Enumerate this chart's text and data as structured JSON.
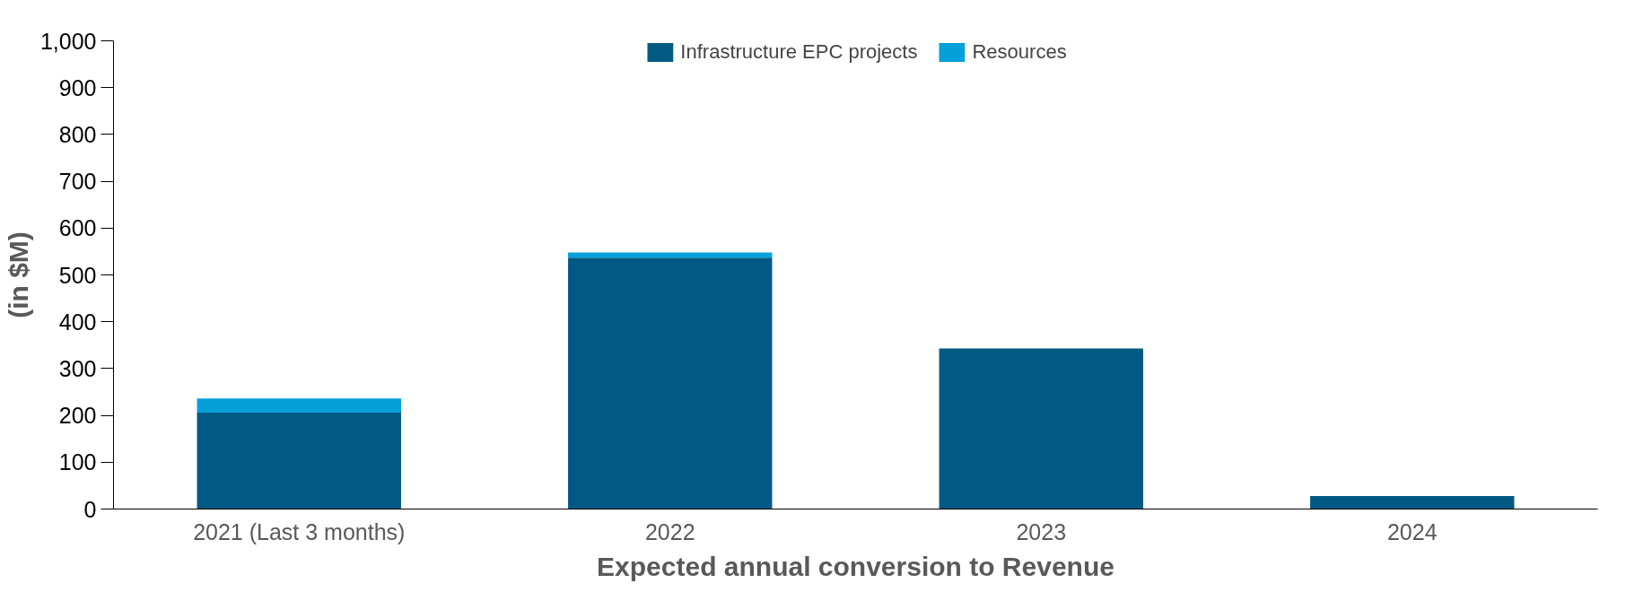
{
  "chart_data": {
    "type": "bar",
    "stacked": true,
    "xlabel": "Expected annual conversion to Revenue",
    "ylabel": "(in $M)",
    "categories": [
      "2021 (Last 3 months)",
      "2022",
      "2023",
      "2024"
    ],
    "series": [
      {
        "name": "Infrastructure EPC projects",
        "color": "#025a84",
        "values": [
          206,
          537,
          343,
          28
        ]
      },
      {
        "name": "Resources",
        "color": "#04a0da",
        "values": [
          30,
          11,
          0,
          0
        ]
      }
    ],
    "ylim": [
      0,
      1000
    ],
    "yticks": [
      0,
      {
        "value": 100,
        "label": "100"
      },
      200,
      300,
      400,
      500,
      600,
      700,
      800,
      900,
      {
        "value": 1000,
        "label": "1,000"
      }
    ],
    "grid": false,
    "legend": "top"
  }
}
